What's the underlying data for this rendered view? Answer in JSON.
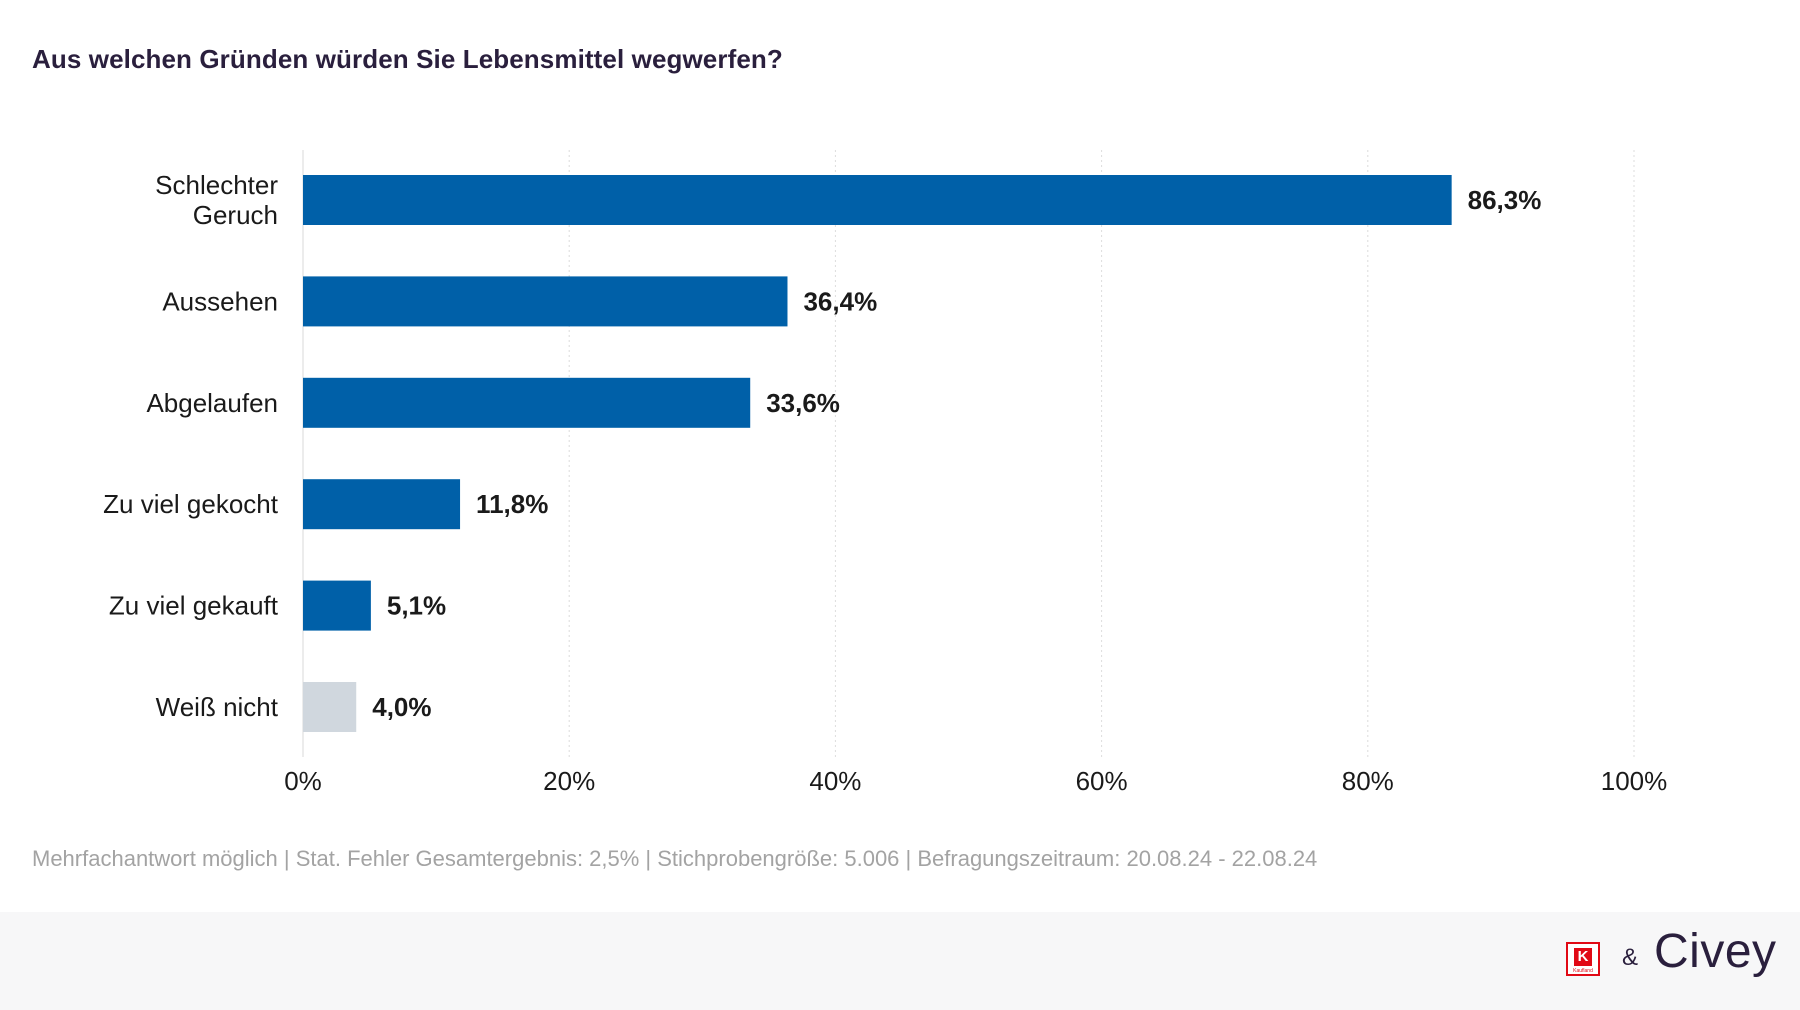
{
  "title": "Aus welchen Gründen würden Sie Lebensmittel wegwerfen?",
  "chart_data": {
    "type": "bar",
    "orientation": "horizontal",
    "categories": [
      [
        "Schlechter",
        "Geruch"
      ],
      [
        "Aussehen"
      ],
      [
        "Abgelaufen"
      ],
      [
        "Zu viel gekocht"
      ],
      [
        "Zu viel gekauft"
      ],
      [
        "Weiß nicht"
      ]
    ],
    "values": [
      86.3,
      36.4,
      33.6,
      11.8,
      5.1,
      4.0
    ],
    "value_labels": [
      "86,3%",
      "36,4%",
      "33,6%",
      "11,8%",
      "5,1%",
      "4,0%"
    ],
    "bar_colors": [
      "#0060a8",
      "#0060a8",
      "#0060a8",
      "#0060a8",
      "#0060a8",
      "#d0d7de"
    ],
    "xlim": [
      0,
      100
    ],
    "x_ticks": [
      0,
      20,
      40,
      60,
      80,
      100
    ],
    "x_tick_labels": [
      "0%",
      "20%",
      "40%",
      "60%",
      "80%",
      "100%"
    ],
    "grid": "vertical dotted"
  },
  "footnote": "Mehrfachantwort möglich | Stat. Fehler Gesamtergebnis: 2,5% | Stichprobengröße: 5.006 | Befragungszeitraum: 20.08.24 - 22.08.24",
  "footer": {
    "kaufland_letter": "K",
    "kaufland_name": "Kaufland",
    "ampersand": "&",
    "civey_name": "Civey"
  },
  "colors": {
    "bar": "#0060a8",
    "bar_muted": "#d0d7de",
    "title": "#2a1f3d",
    "footnote": "#a3a3a3",
    "kaufland_red": "#e10915"
  }
}
